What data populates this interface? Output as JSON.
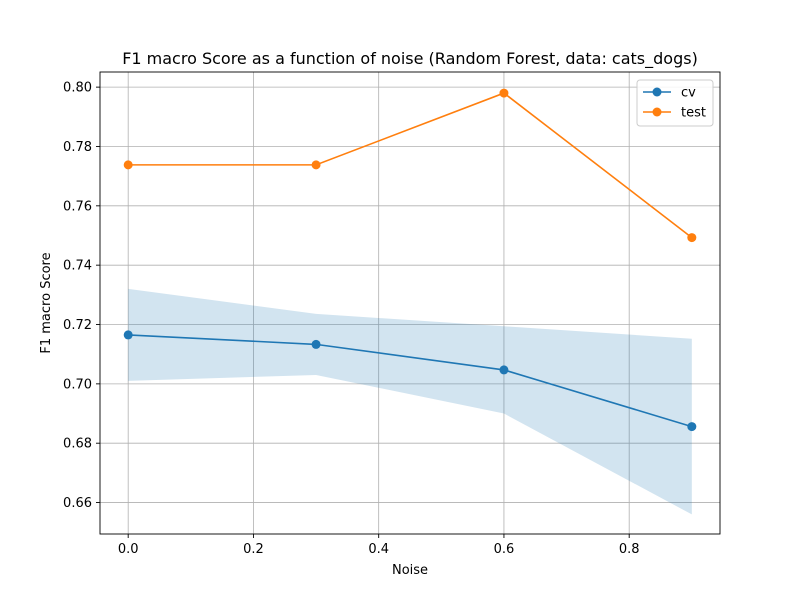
{
  "chart_data": {
    "type": "line",
    "title": "F1 macro Score as a function of noise (Random Forest, data: cats_dogs)",
    "xlabel": "Noise",
    "ylabel": "F1 macro Score",
    "xlim": [
      -0.045,
      0.945
    ],
    "ylim": [
      0.6494,
      0.8051
    ],
    "xticks": [
      0.0,
      0.2,
      0.4,
      0.6,
      0.8
    ],
    "xtick_labels": [
      "0.0",
      "0.2",
      "0.4",
      "0.6",
      "0.8"
    ],
    "yticks": [
      0.66,
      0.68,
      0.7,
      0.72,
      0.74,
      0.76,
      0.78,
      0.8
    ],
    "ytick_labels": [
      "0.66",
      "0.68",
      "0.70",
      "0.72",
      "0.74",
      "0.76",
      "0.78",
      "0.80"
    ],
    "grid": true,
    "legend_position": "top-right",
    "x": [
      0.0,
      0.3,
      0.6,
      0.9
    ],
    "series": [
      {
        "name": "cv",
        "color": "#1f77b4",
        "values": [
          0.7165,
          0.7133,
          0.7047,
          0.6856
        ],
        "band_lower": [
          0.701,
          0.703,
          0.69,
          0.656
        ],
        "band_upper": [
          0.732,
          0.7236,
          0.7194,
          0.7152
        ],
        "band_color": "#1f77b4"
      },
      {
        "name": "test",
        "color": "#ff7f0e",
        "values": [
          0.7738,
          0.7738,
          0.798,
          0.7493
        ]
      }
    ]
  }
}
